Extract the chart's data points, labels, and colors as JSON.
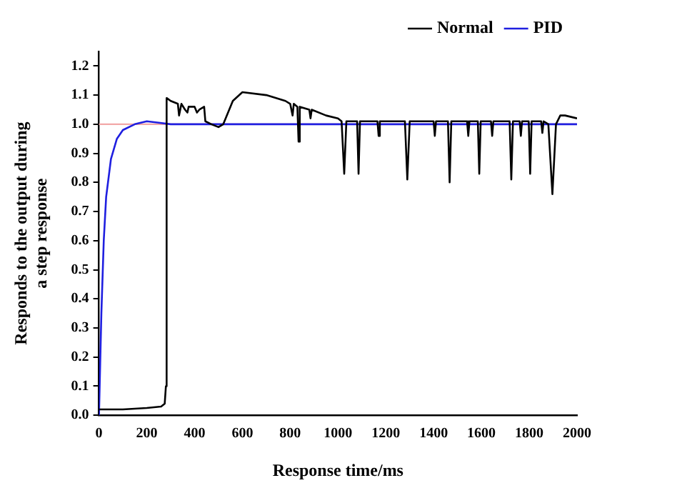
{
  "chart_data": {
    "type": "line",
    "xlabel": "Response time/ms",
    "ylabel": "Responds to the output during\na step response",
    "xlim": [
      0,
      2000
    ],
    "xticks": [
      0,
      200,
      400,
      600,
      800,
      1000,
      1200,
      1400,
      1600,
      1800,
      2000
    ],
    "ylim": [
      0,
      1.25
    ],
    "yticks": [
      {
        "value": 0,
        "label": "0.0"
      },
      0.1,
      0.2,
      0.3,
      0.4,
      0.5,
      0.6,
      0.7,
      0.8,
      0.9,
      {
        "value": 1,
        "label": "1.0"
      },
      1.1,
      1.2
    ],
    "grid": false,
    "legend": "top right",
    "marker": "none",
    "line_style": "solid",
    "ref_lines": [
      {
        "axis": "y",
        "value": 1.0,
        "color": "#f2a9a9"
      }
    ],
    "series": [
      {
        "name": "Normal",
        "color": "#000000",
        "x": [
          0,
          100,
          200,
          260,
          275,
          280,
          283,
          300,
          330,
          335,
          345,
          360,
          370,
          375,
          400,
          410,
          420,
          440,
          445,
          470,
          500,
          520,
          560,
          600,
          700,
          780,
          800,
          810,
          815,
          830,
          835,
          840,
          880,
          885,
          890,
          950,
          1000,
          1015,
          1026,
          1035,
          1080,
          1086,
          1092,
          1165,
          1170,
          1175,
          1280,
          1290,
          1300,
          1400,
          1405,
          1410,
          1460,
          1467,
          1474,
          1540,
          1545,
          1550,
          1585,
          1591,
          1597,
          1640,
          1645,
          1650,
          1718,
          1725,
          1732,
          1760,
          1765,
          1770,
          1798,
          1804,
          1810,
          1850,
          1855,
          1860,
          1880,
          1897,
          1912,
          1930,
          1950,
          2000
        ],
        "values": [
          0.02,
          0.02,
          0.025,
          0.03,
          0.04,
          0.1,
          1.09,
          1.08,
          1.07,
          1.03,
          1.07,
          1.05,
          1.04,
          1.06,
          1.06,
          1.04,
          1.05,
          1.06,
          1.01,
          1.0,
          0.99,
          1.0,
          1.08,
          1.11,
          1.1,
          1.08,
          1.07,
          1.03,
          1.07,
          1.06,
          0.94,
          1.06,
          1.05,
          1.02,
          1.05,
          1.03,
          1.02,
          1.01,
          0.83,
          1.01,
          1.01,
          0.83,
          1.01,
          1.01,
          0.96,
          1.01,
          1.01,
          0.81,
          1.01,
          1.01,
          0.96,
          1.01,
          1.01,
          0.8,
          1.01,
          1.01,
          0.96,
          1.01,
          1.01,
          0.83,
          1.01,
          1.01,
          0.96,
          1.01,
          1.01,
          0.81,
          1.01,
          1.01,
          0.96,
          1.01,
          1.01,
          0.83,
          1.01,
          1.01,
          0.97,
          1.01,
          1.0,
          0.76,
          1.0,
          1.03,
          1.03,
          1.02
        ]
      },
      {
        "name": "PID",
        "color": "#1f1fe0",
        "x": [
          0,
          10,
          20,
          30,
          50,
          75,
          100,
          150,
          200,
          250,
          300,
          2000
        ],
        "values": [
          0,
          0.35,
          0.6,
          0.75,
          0.88,
          0.95,
          0.98,
          1.0,
          1.01,
          1.005,
          1.0,
          1.0
        ]
      }
    ]
  }
}
